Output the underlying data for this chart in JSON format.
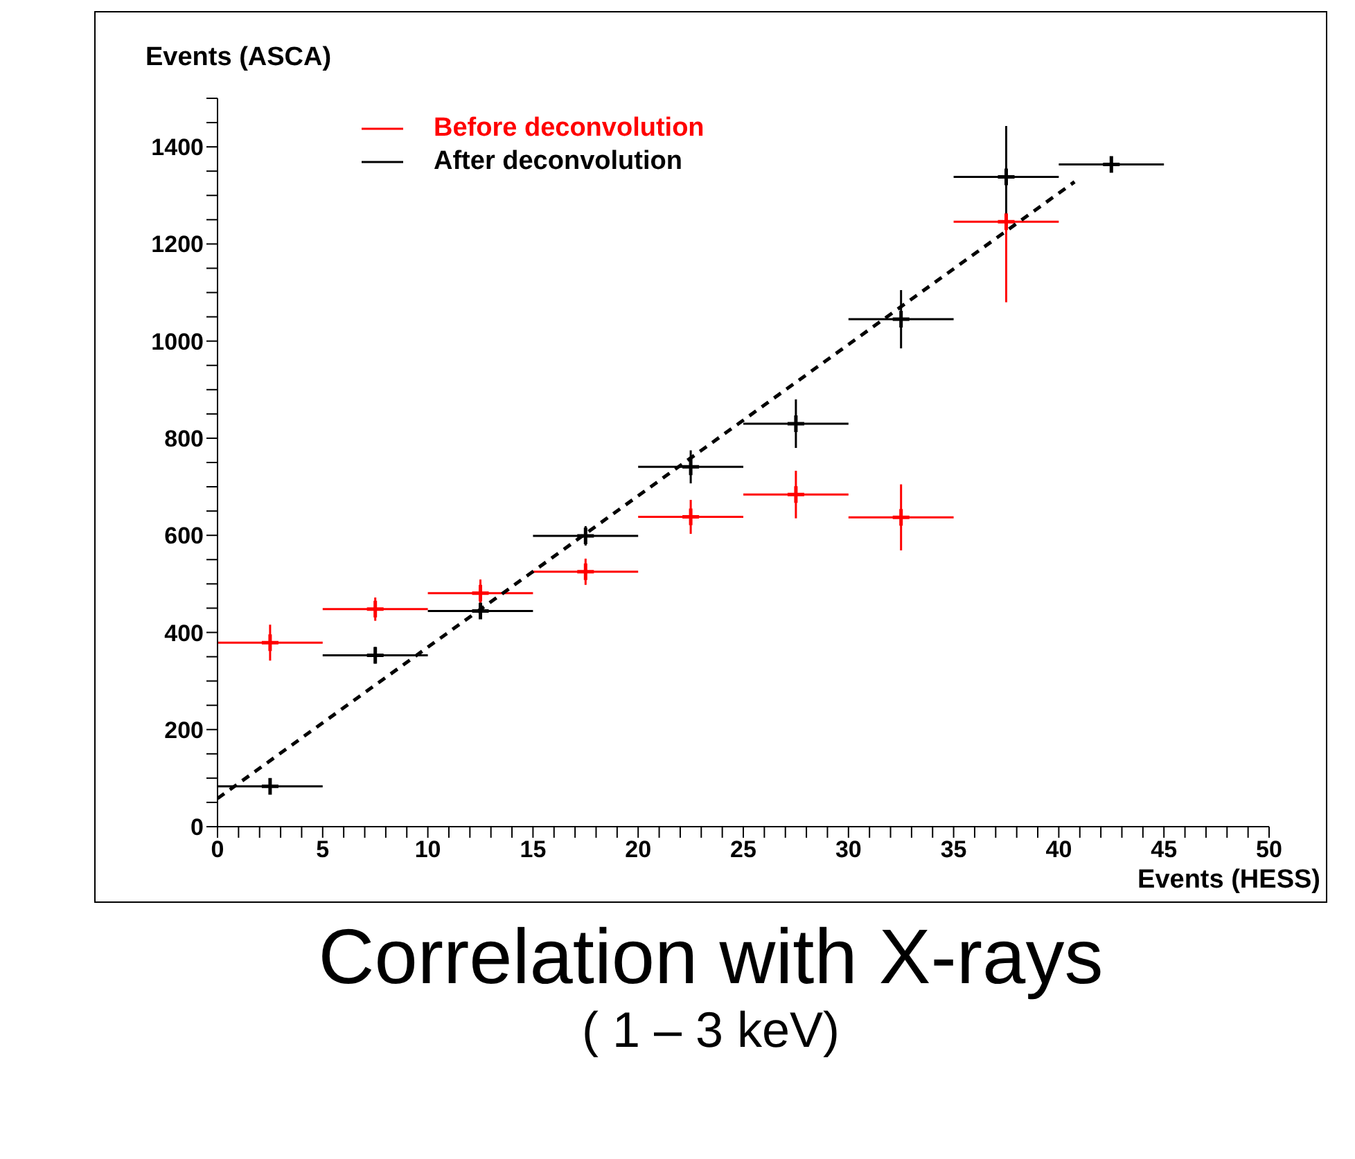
{
  "chart_data": {
    "type": "scatter",
    "title": "Correlation with X-rays",
    "subtitle": "( 1 – 3 keV)",
    "xlabel": "Events (HESS)",
    "ylabel": "Events (ASCA)",
    "x": [
      2.5,
      7.5,
      12.5,
      17.5,
      22.5,
      27.5,
      32.5,
      37.5,
      42.5
    ],
    "series": [
      {
        "name": "Before deconvolution",
        "color": "#ff0000",
        "x": [
          2.5,
          7.5,
          12.5,
          17.5,
          22.5,
          27.5,
          32.5,
          37.5
        ],
        "values": [
          379,
          448,
          481,
          525,
          638,
          684,
          637,
          1246
        ],
        "errors": [
          37,
          24,
          28,
          27,
          35,
          49,
          68,
          166
        ],
        "xerrors": [
          2.5,
          2.5,
          2.5,
          2.5,
          2.5,
          2.5,
          2.5,
          2.5
        ]
      },
      {
        "name": "After deconvolution",
        "color": "#000000",
        "values": [
          83,
          353,
          444,
          599,
          741,
          830,
          1045,
          1338,
          1364
        ],
        "errors": [
          15,
          17,
          12,
          20,
          34,
          50,
          60,
          105,
          null
        ],
        "xerrors": [
          2.5,
          2.5,
          2.5,
          2.5,
          2.5,
          2.5,
          2.5,
          2.5,
          2.5
        ]
      },
      {
        "type": "line",
        "color": "#000000",
        "line_style": "dashed",
        "marker": "none",
        "x": [
          0,
          40.75
        ],
        "values": [
          58,
          1328
        ]
      }
    ],
    "xlim": [
      0,
      50
    ],
    "xticks": [
      0,
      {
        "value": 1,
        "label": null
      },
      {
        "value": 2,
        "label": null
      },
      {
        "value": 3,
        "label": null
      },
      {
        "value": 4,
        "label": null
      },
      5,
      {
        "value": 6,
        "label": null
      },
      {
        "value": 7,
        "label": null
      },
      {
        "value": 8,
        "label": null
      },
      {
        "value": 9,
        "label": null
      },
      10,
      {
        "value": 11,
        "label": null
      },
      {
        "value": 12,
        "label": null
      },
      {
        "value": 13,
        "label": null
      },
      {
        "value": 14,
        "label": null
      },
      15,
      {
        "value": 16,
        "label": null
      },
      {
        "value": 17,
        "label": null
      },
      {
        "value": 18,
        "label": null
      },
      {
        "value": 19,
        "label": null
      },
      20,
      {
        "value": 21,
        "label": null
      },
      {
        "value": 22,
        "label": null
      },
      {
        "value": 23,
        "label": null
      },
      {
        "value": 24,
        "label": null
      },
      25,
      {
        "value": 26,
        "label": null
      },
      {
        "value": 27,
        "label": null
      },
      {
        "value": 28,
        "label": null
      },
      {
        "value": 29,
        "label": null
      },
      30,
      {
        "value": 31,
        "label": null
      },
      {
        "value": 32,
        "label": null
      },
      {
        "value": 33,
        "label": null
      },
      {
        "value": 34,
        "label": null
      },
      35,
      {
        "value": 36,
        "label": null
      },
      {
        "value": 37,
        "label": null
      },
      {
        "value": 38,
        "label": null
      },
      {
        "value": 39,
        "label": null
      },
      40,
      {
        "value": 41,
        "label": null
      },
      {
        "value": 42,
        "label": null
      },
      {
        "value": 43,
        "label": null
      },
      {
        "value": 44,
        "label": null
      },
      45,
      {
        "value": 46,
        "label": null
      },
      {
        "value": 47,
        "label": null
      },
      {
        "value": 48,
        "label": null
      },
      {
        "value": 49,
        "label": null
      },
      50
    ],
    "ylim": [
      0,
      1500
    ],
    "yticks": [
      0,
      {
        "value": 50,
        "label": null
      },
      {
        "value": 100,
        "label": null
      },
      {
        "value": 150,
        "label": null
      },
      200,
      {
        "value": 250,
        "label": null
      },
      {
        "value": 300,
        "label": null
      },
      {
        "value": 350,
        "label": null
      },
      400,
      {
        "value": 450,
        "label": null
      },
      {
        "value": 500,
        "label": null
      },
      {
        "value": 550,
        "label": null
      },
      600,
      {
        "value": 650,
        "label": null
      },
      {
        "value": 700,
        "label": null
      },
      {
        "value": 750,
        "label": null
      },
      800,
      {
        "value": 850,
        "label": null
      },
      {
        "value": 900,
        "label": null
      },
      {
        "value": 950,
        "label": null
      },
      1000,
      {
        "value": 1050,
        "label": null
      },
      {
        "value": 1100,
        "label": null
      },
      {
        "value": 1150,
        "label": null
      },
      1200,
      {
        "value": 1250,
        "label": null
      },
      {
        "value": 1300,
        "label": null
      },
      {
        "value": 1350,
        "label": null
      },
      1400,
      {
        "value": 1450,
        "label": null
      },
      {
        "value": 1500,
        "label": null
      }
    ],
    "marker": "cross",
    "legend": "top left",
    "grid": false
  }
}
